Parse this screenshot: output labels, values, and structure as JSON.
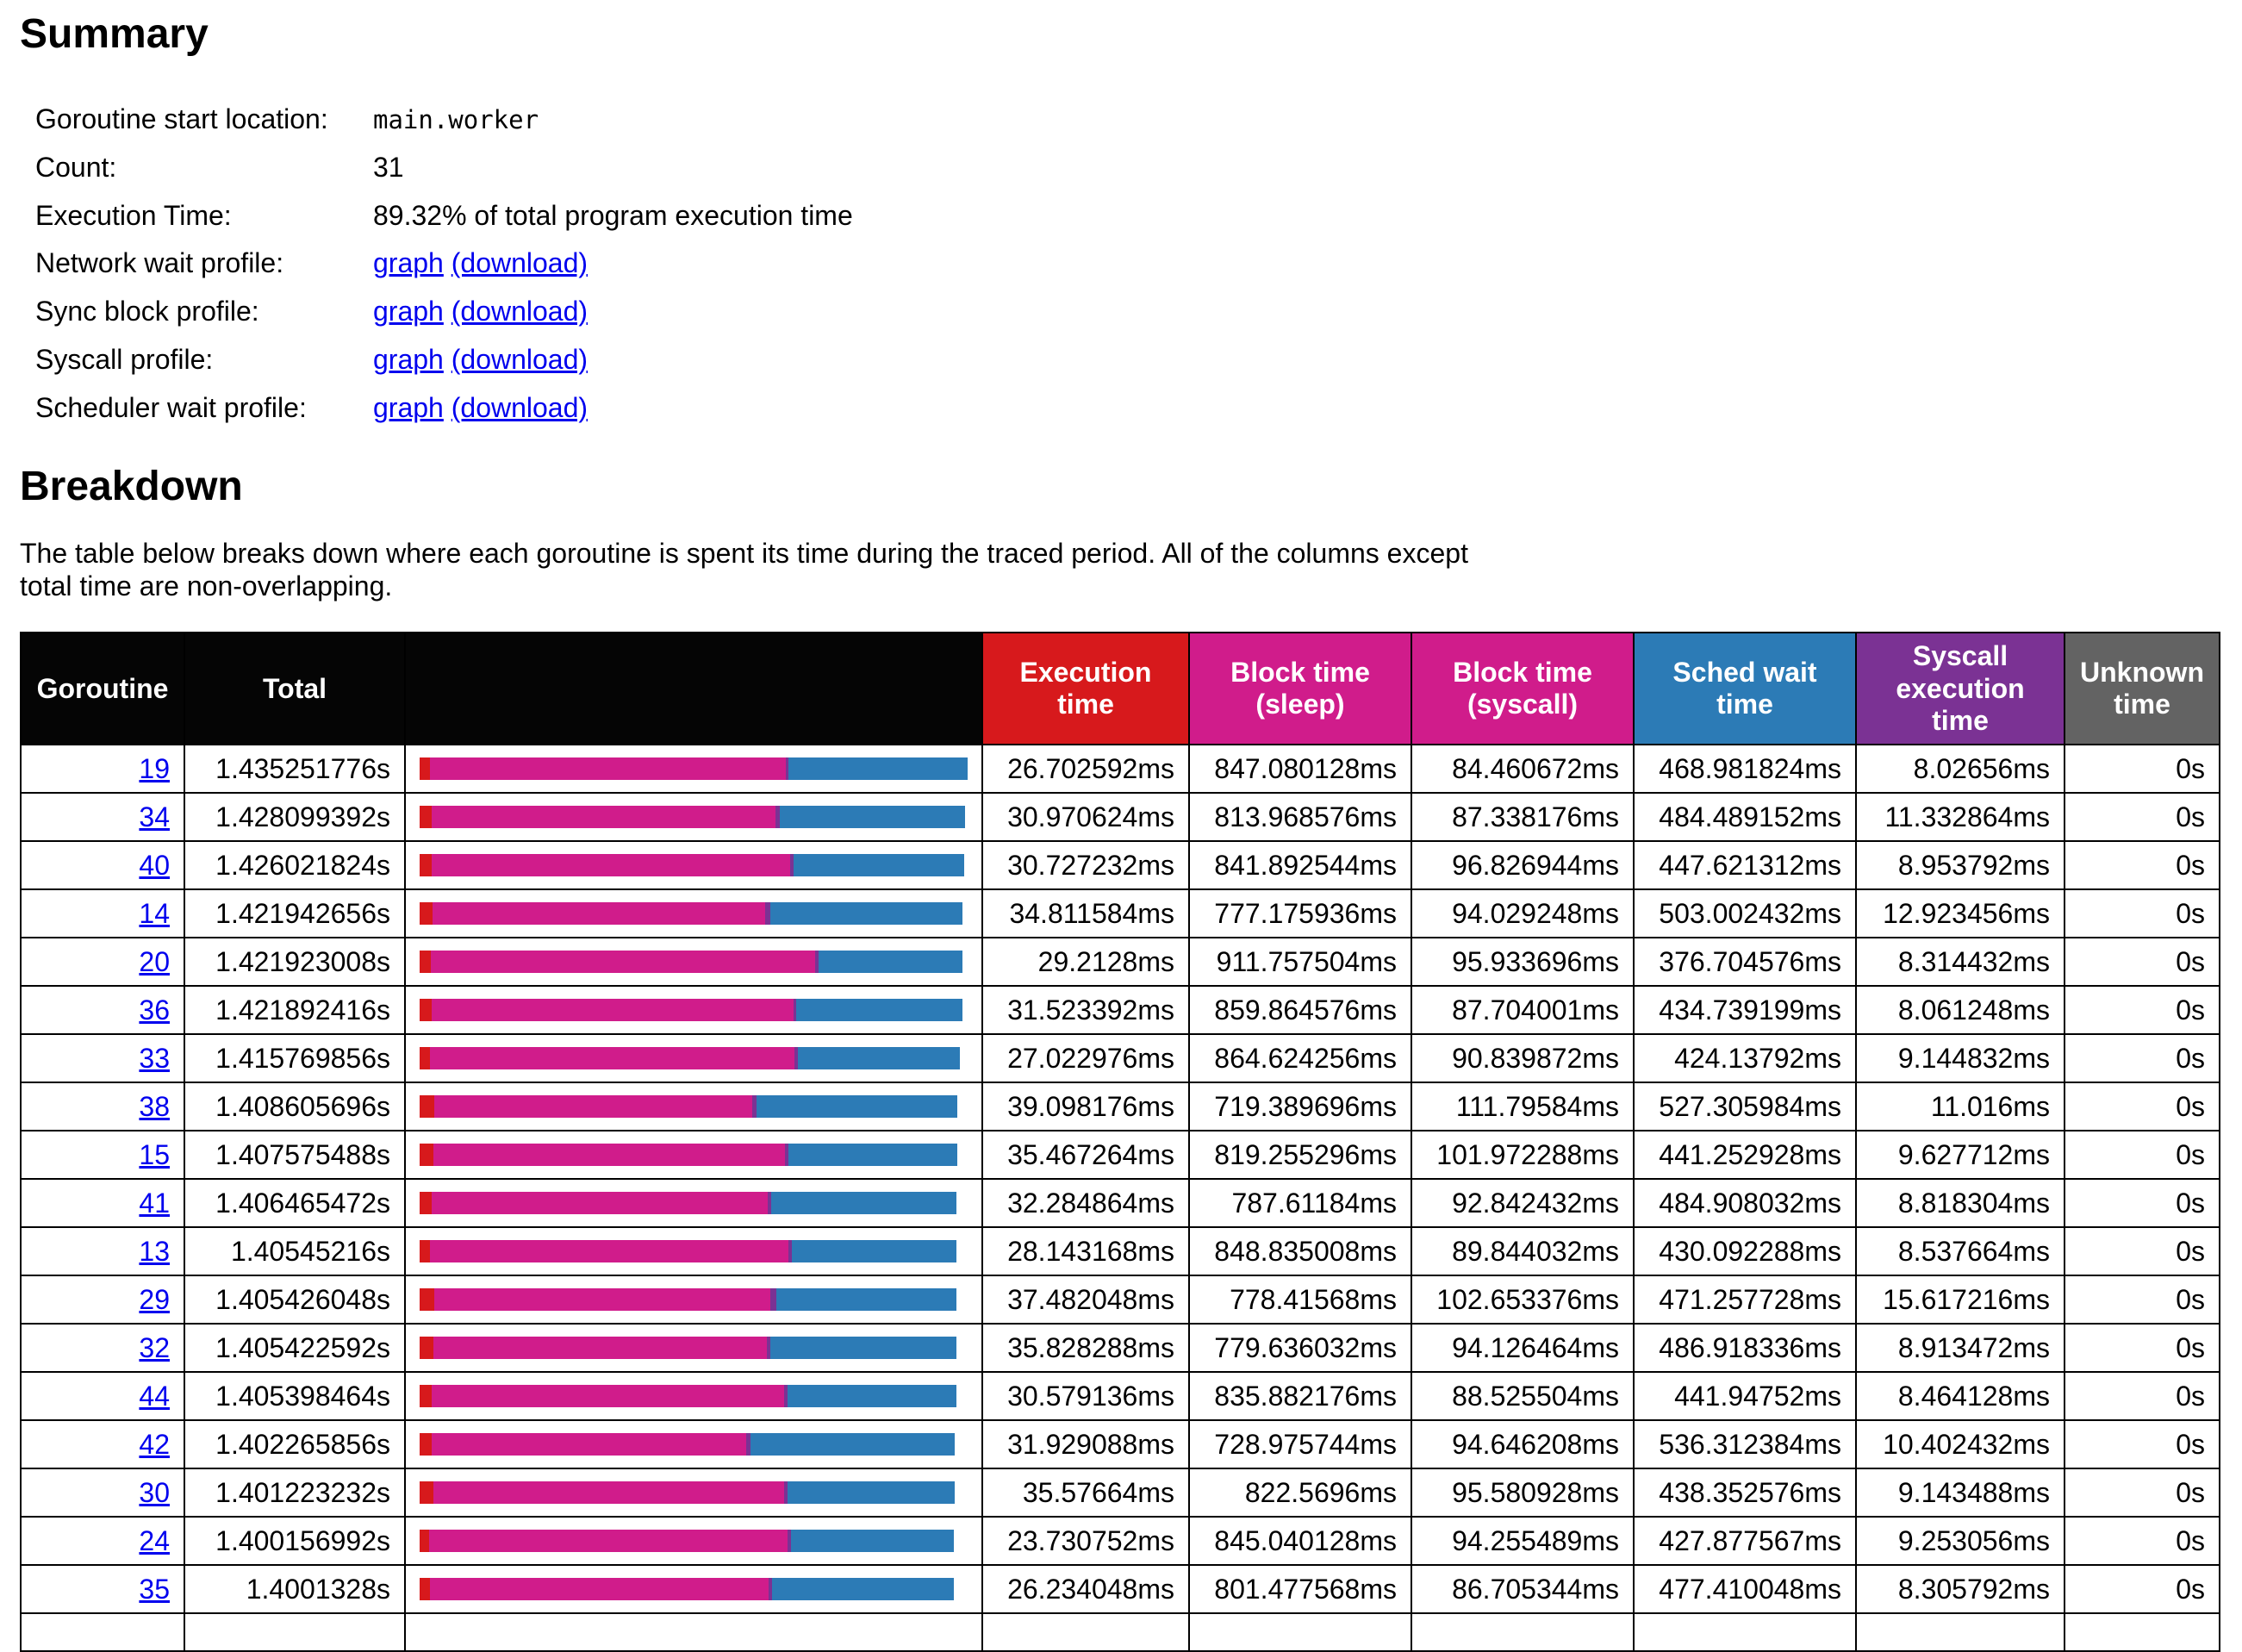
{
  "page": {
    "summary_heading": "Summary",
    "breakdown_heading": "Breakdown",
    "description_lines": [
      "The table below breaks down where each goroutine is spent its time during the traced period. All of the columns except",
      "total time are non-overlapping."
    ]
  },
  "summary": {
    "start_location_label": "Goroutine start location:",
    "start_location": "main.worker",
    "count_label": "Count:",
    "count": "31",
    "exec_time_label": "Execution Time:",
    "exec_time": "89.32% of total program execution time",
    "profiles": [
      {
        "name": "network-wait",
        "label": "Network wait profile:",
        "graph": "graph",
        "download": "(download)"
      },
      {
        "name": "sync-block",
        "label": "Sync block profile:",
        "graph": "graph",
        "download": "(download)"
      },
      {
        "name": "syscall",
        "label": "Syscall profile:",
        "graph": "graph",
        "download": "(download)"
      },
      {
        "name": "sched-wait",
        "label": "Scheduler wait profile:",
        "graph": "graph",
        "download": "(download)"
      }
    ]
  },
  "table": {
    "headers": {
      "goroutine": "Goroutine",
      "total": "Total",
      "bar": "",
      "exec": "Execution time",
      "block_sleep": "Block time (sleep)",
      "block_syscall": "Block time (syscall)",
      "sched": "Sched wait time",
      "syscall_exec": "Syscall execution time",
      "unknown": "Unknown time"
    },
    "colors": {
      "header_bg": "#050505",
      "exec_time": "#d7191c",
      "block_time": "#d01c8b",
      "syscall_time": "#7b3294",
      "sched_time": "#2c7bb6",
      "unknown_time": "#636363",
      "link": "#0000ee"
    },
    "rows": [
      {
        "id": "19",
        "total": "1.435251776s",
        "exec": "26.702592ms",
        "block_sleep": "847.080128ms",
        "block_syscall": "84.460672ms",
        "sched_wait": "468.981824ms",
        "syscall_exec": "8.02656ms",
        "unknown": "0s"
      },
      {
        "id": "34",
        "total": "1.428099392s",
        "exec": "30.970624ms",
        "block_sleep": "813.968576ms",
        "block_syscall": "87.338176ms",
        "sched_wait": "484.489152ms",
        "syscall_exec": "11.332864ms",
        "unknown": "0s"
      },
      {
        "id": "40",
        "total": "1.426021824s",
        "exec": "30.727232ms",
        "block_sleep": "841.892544ms",
        "block_syscall": "96.826944ms",
        "sched_wait": "447.621312ms",
        "syscall_exec": "8.953792ms",
        "unknown": "0s"
      },
      {
        "id": "14",
        "total": "1.421942656s",
        "exec": "34.811584ms",
        "block_sleep": "777.175936ms",
        "block_syscall": "94.029248ms",
        "sched_wait": "503.002432ms",
        "syscall_exec": "12.923456ms",
        "unknown": "0s"
      },
      {
        "id": "20",
        "total": "1.421923008s",
        "exec": "29.2128ms",
        "block_sleep": "911.757504ms",
        "block_syscall": "95.933696ms",
        "sched_wait": "376.704576ms",
        "syscall_exec": "8.314432ms",
        "unknown": "0s"
      },
      {
        "id": "36",
        "total": "1.421892416s",
        "exec": "31.523392ms",
        "block_sleep": "859.864576ms",
        "block_syscall": "87.704001ms",
        "sched_wait": "434.739199ms",
        "syscall_exec": "8.061248ms",
        "unknown": "0s"
      },
      {
        "id": "33",
        "total": "1.415769856s",
        "exec": "27.022976ms",
        "block_sleep": "864.624256ms",
        "block_syscall": "90.839872ms",
        "sched_wait": "424.13792ms",
        "syscall_exec": "9.144832ms",
        "unknown": "0s"
      },
      {
        "id": "38",
        "total": "1.408605696s",
        "exec": "39.098176ms",
        "block_sleep": "719.389696ms",
        "block_syscall": "111.79584ms",
        "sched_wait": "527.305984ms",
        "syscall_exec": "11.016ms",
        "unknown": "0s"
      },
      {
        "id": "15",
        "total": "1.407575488s",
        "exec": "35.467264ms",
        "block_sleep": "819.255296ms",
        "block_syscall": "101.972288ms",
        "sched_wait": "441.252928ms",
        "syscall_exec": "9.627712ms",
        "unknown": "0s"
      },
      {
        "id": "41",
        "total": "1.406465472s",
        "exec": "32.284864ms",
        "block_sleep": "787.61184ms",
        "block_syscall": "92.842432ms",
        "sched_wait": "484.908032ms",
        "syscall_exec": "8.818304ms",
        "unknown": "0s"
      },
      {
        "id": "13",
        "total": "1.40545216s",
        "exec": "28.143168ms",
        "block_sleep": "848.835008ms",
        "block_syscall": "89.844032ms",
        "sched_wait": "430.092288ms",
        "syscall_exec": "8.537664ms",
        "unknown": "0s"
      },
      {
        "id": "29",
        "total": "1.405426048s",
        "exec": "37.482048ms",
        "block_sleep": "778.41568ms",
        "block_syscall": "102.653376ms",
        "sched_wait": "471.257728ms",
        "syscall_exec": "15.617216ms",
        "unknown": "0s"
      },
      {
        "id": "32",
        "total": "1.405422592s",
        "exec": "35.828288ms",
        "block_sleep": "779.636032ms",
        "block_syscall": "94.126464ms",
        "sched_wait": "486.918336ms",
        "syscall_exec": "8.913472ms",
        "unknown": "0s"
      },
      {
        "id": "44",
        "total": "1.405398464s",
        "exec": "30.579136ms",
        "block_sleep": "835.882176ms",
        "block_syscall": "88.525504ms",
        "sched_wait": "441.94752ms",
        "syscall_exec": "8.464128ms",
        "unknown": "0s"
      },
      {
        "id": "42",
        "total": "1.402265856s",
        "exec": "31.929088ms",
        "block_sleep": "728.975744ms",
        "block_syscall": "94.646208ms",
        "sched_wait": "536.312384ms",
        "syscall_exec": "10.402432ms",
        "unknown": "0s"
      },
      {
        "id": "30",
        "total": "1.401223232s",
        "exec": "35.57664ms",
        "block_sleep": "822.5696ms",
        "block_syscall": "95.580928ms",
        "sched_wait": "438.352576ms",
        "syscall_exec": "9.143488ms",
        "unknown": "0s"
      },
      {
        "id": "24",
        "total": "1.400156992s",
        "exec": "23.730752ms",
        "block_sleep": "845.040128ms",
        "block_syscall": "94.255489ms",
        "sched_wait": "427.877567ms",
        "syscall_exec": "9.253056ms",
        "unknown": "0s"
      },
      {
        "id": "35",
        "total": "1.4001328s",
        "exec": "26.234048ms",
        "block_sleep": "801.477568ms",
        "block_syscall": "86.705344ms",
        "sched_wait": "477.410048ms",
        "syscall_exec": "8.305792ms",
        "unknown": "0s"
      }
    ]
  }
}
